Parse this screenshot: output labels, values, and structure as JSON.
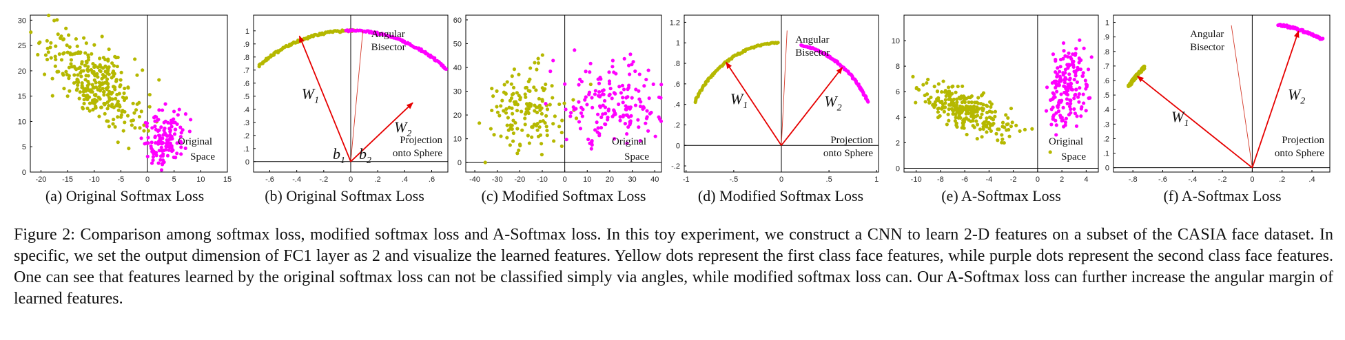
{
  "chart_data": [
    {
      "id": "a",
      "type": "scatter",
      "caption": "(a) Original Softmax Loss",
      "xlim": [
        -22,
        15
      ],
      "ylim": [
        0,
        31
      ],
      "xticks": [
        -20,
        -15,
        -10,
        -5,
        0,
        5,
        10,
        15
      ],
      "yticks": [
        0,
        5,
        10,
        15,
        20,
        25,
        30
      ],
      "annotations": [
        "Original",
        "Space"
      ],
      "series": [
        {
          "color": "#b5b800",
          "cluster": {
            "cx": -10,
            "cy": 18,
            "spread_x": 4.5,
            "spread_y": 4.5,
            "n": 320
          }
        },
        {
          "color": "#ff00ff",
          "cluster": {
            "cx": 3,
            "cy": 7,
            "spread_x": 2.0,
            "spread_y": 2.5,
            "n": 140
          }
        }
      ]
    },
    {
      "id": "b",
      "type": "scatter",
      "caption": "(b) Original Softmax Loss",
      "xlim": [
        -0.72,
        0.72
      ],
      "ylim": [
        -0.08,
        1.12
      ],
      "xticks": [
        -0.6,
        -0.4,
        -0.2,
        0,
        0.2,
        0.4,
        0.6
      ],
      "yticks": [
        0,
        0.1,
        0.2,
        0.3,
        0.4,
        0.5,
        0.6,
        0.7,
        0.8,
        0.9,
        1
      ],
      "annotations": [
        "Angular",
        "Bisector",
        "Projection",
        "onto Sphere"
      ],
      "vectors": [
        {
          "label": "W1",
          "to": [
            -0.38,
            0.96
          ]
        },
        {
          "label": "W2",
          "to": [
            0.46,
            0.45
          ]
        }
      ],
      "bias_labels": [
        "b1",
        "b2"
      ],
      "bisector_to": [
        0.09,
        1.0
      ],
      "series": [
        {
          "color": "#b5b800",
          "arc_deg": [
            88,
            133
          ],
          "n": 90
        },
        {
          "color": "#ff00ff",
          "arc_deg": [
            45,
            92
          ],
          "n": 90
        }
      ]
    },
    {
      "id": "c",
      "type": "scatter",
      "caption": "(c) Modified Softmax Loss",
      "xlim": [
        -44,
        43
      ],
      "ylim": [
        -4,
        62
      ],
      "xticks": [
        -40,
        -30,
        -20,
        -10,
        0,
        10,
        20,
        30,
        40
      ],
      "yticks": [
        0,
        10,
        20,
        30,
        40,
        50,
        60
      ],
      "annotations": [
        "Original",
        "Space"
      ],
      "series": [
        {
          "color": "#b5b800",
          "cluster": {
            "cx": -16,
            "cy": 23,
            "spread_x": 9,
            "spread_y": 9,
            "n": 150
          }
        },
        {
          "color": "#ff00ff",
          "cluster": {
            "cx": 22,
            "cy": 25,
            "spread_x": 11,
            "spread_y": 8,
            "n": 180
          }
        }
      ]
    },
    {
      "id": "d",
      "type": "scatter",
      "caption": "(d) Modified Softmax Loss",
      "xlim": [
        -1.02,
        1.02
      ],
      "ylim": [
        -0.26,
        1.27
      ],
      "xticks": [
        -1,
        -0.5,
        0,
        0.5,
        1
      ],
      "yticks": [
        -0.2,
        0,
        0.2,
        0.4,
        0.6,
        0.8,
        1,
        1.2
      ],
      "annotations": [
        "Angular",
        "Bisector",
        "Projection",
        "onto Sphere"
      ],
      "vectors": [
        {
          "label": "W1",
          "to": [
            -0.58,
            0.81
          ]
        },
        {
          "label": "W2",
          "to": [
            0.64,
            0.76
          ]
        }
      ],
      "bisector_to": [
        0.06,
        1.12
      ],
      "series": [
        {
          "color": "#b5b800",
          "arc_deg": [
            92,
            155
          ],
          "n": 90
        },
        {
          "color": "#ff00ff",
          "arc_deg": [
            25,
            78
          ],
          "n": 90
        }
      ]
    },
    {
      "id": "e",
      "type": "scatter",
      "caption": "(e) A-Softmax Loss",
      "xlim": [
        -11,
        5
      ],
      "ylim": [
        -0.3,
        12
      ],
      "xticks": [
        -10,
        -8,
        -6,
        -4,
        -2,
        0,
        2,
        4
      ],
      "yticks": [
        0,
        2,
        4,
        6,
        8,
        10
      ],
      "annotations": [
        "Original",
        "Space"
      ],
      "series": [
        {
          "color": "#b5b800",
          "cluster": {
            "cx": -6,
            "cy": 4.5,
            "spread_x": 1.8,
            "spread_y": 0.8,
            "n": 260
          }
        },
        {
          "color": "#ff00ff",
          "cluster": {
            "cx": 2.5,
            "cy": 6.5,
            "spread_x": 0.7,
            "spread_y": 1.6,
            "n": 180
          }
        }
      ]
    },
    {
      "id": "f",
      "type": "scatter",
      "caption": "(f) A-Softmax Loss",
      "xlim": [
        -0.93,
        0.52
      ],
      "ylim": [
        -0.03,
        1.05
      ],
      "xticks": [
        -0.8,
        -0.6,
        -0.4,
        -0.2,
        0,
        0.2,
        0.4
      ],
      "yticks": [
        0,
        0.1,
        0.2,
        0.3,
        0.4,
        0.5,
        0.6,
        0.7,
        0.8,
        0.9,
        1
      ],
      "annotations": [
        "Angular",
        "Bisector",
        "Projection",
        "onto Sphere"
      ],
      "vectors": [
        {
          "label": "W1",
          "to": [
            -0.77,
            0.63
          ]
        },
        {
          "label": "W2",
          "to": [
            0.31,
            0.94
          ]
        }
      ],
      "bisector_to": [
        -0.14,
        0.98
      ],
      "series": [
        {
          "color": "#b5b800",
          "arc_deg": [
            136,
            146
          ],
          "n": 60
        },
        {
          "color": "#ff00ff",
          "arc_deg": [
            62,
            80
          ],
          "n": 70
        }
      ]
    }
  ],
  "caption": "Figure 2: Comparison among softmax loss, modified softmax loss and A-Softmax loss. In this toy experiment, we construct a CNN to learn 2-D features on a subset of the CASIA face dataset. In specific, we set the output dimension of FC1 layer as 2 and visualize the learned features. Yellow dots represent the first class face features, while purple dots represent the second class face features. One can see that features learned by the original softmax loss can not be classified simply via angles, while modified softmax loss can. Our A-Softmax loss can further increase the angular margin of learned features."
}
